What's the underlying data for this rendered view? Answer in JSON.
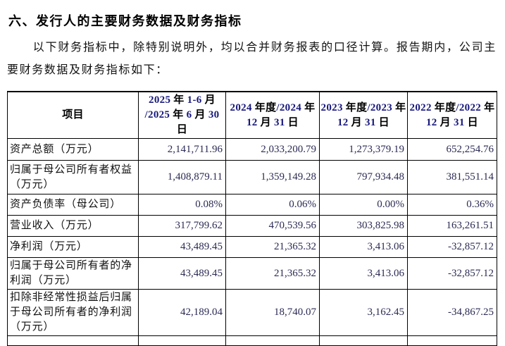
{
  "page": {
    "section_title": "六、发行人的主要财务数据及财务指标",
    "intro_paragraph": "以下财务指标中，除特别说明外，均以合并财务报表的口径计算。报告期内，公司主要财务数据及财务指标如下："
  },
  "colors": {
    "text": "#000000",
    "header_digits": "#17177c",
    "body_digits": "#2b2b55",
    "table_border": "#000000",
    "background": "#ffffff"
  },
  "table": {
    "columns": [
      {
        "label": "项目"
      },
      {
        "label": "2025 年 1-6 月\n/2025 年 6 月 30 日"
      },
      {
        "label": "2024 年度/2024 年\n12 月 31 日"
      },
      {
        "label": "2023 年度/2023 年\n12 月 31 日"
      },
      {
        "label": "2022 年度/2022 年\n12 月 31 日"
      }
    ],
    "rows": [
      {
        "label": "资产总额（万元）",
        "values": [
          "2,141,711.96",
          "2,033,200.79",
          "1,273,379.19",
          "652,254.76"
        ]
      },
      {
        "label": "归属于母公司所有者权益\n（万元）",
        "values": [
          "1,408,879.11",
          "1,359,149.28",
          "797,934.48",
          "381,551.14"
        ]
      },
      {
        "label": "资产负债率（母公司）",
        "values": [
          "0.08%",
          "0.06%",
          "0.00%",
          "0.36%"
        ]
      },
      {
        "label": "营业收入（万元）",
        "values": [
          "317,799.62",
          "470,539.56",
          "303,825.98",
          "163,261.51"
        ]
      },
      {
        "label": "净利润（万元）",
        "values": [
          "43,489.45",
          "21,365.32",
          "3,413.06",
          "-32,857.12"
        ]
      },
      {
        "label": "归属于母公司所有者的净\n利润（万元）",
        "values": [
          "43,489.45",
          "21,365.32",
          "3,413.06",
          "-32,857.12"
        ]
      },
      {
        "label": "扣除非经常性损益后归属\n于母公司所有者的净利润\n（万元）",
        "values": [
          "42,189.04",
          "18,740.07",
          "3,162.45",
          "-34,867.25"
        ]
      }
    ]
  }
}
